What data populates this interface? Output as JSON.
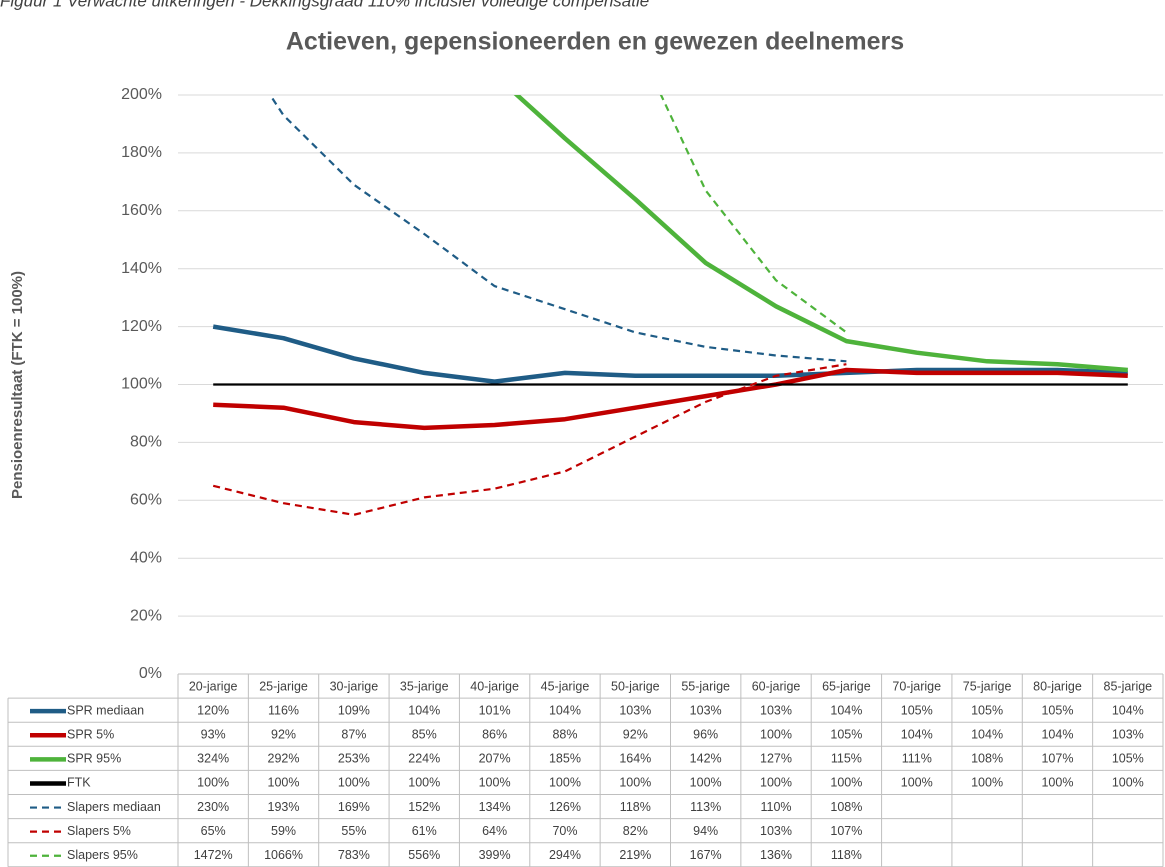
{
  "chart_data": {
    "type": "line",
    "note": "Figuur 1 Verwachte uitkeringen - Dekkingsgraad 110% inclusief volledige compensatie",
    "title": "Actieven, gepensioneerden en gewezen deelnemers",
    "y_label": "Pensioenresultaat (FTK = 100%)",
    "categories": [
      "20-jarige",
      "25-jarige",
      "30-jarige",
      "35-jarige",
      "40-jarige",
      "45-jarige",
      "50-jarige",
      "55-jarige",
      "60-jarige",
      "65-jarige",
      "70-jarige",
      "75-jarige",
      "80-jarige",
      "85-jarige"
    ],
    "ylim": [
      0,
      200
    ],
    "yticks": [
      {
        "value": 0,
        "label": "0%"
      },
      {
        "value": 20,
        "label": "20%"
      },
      {
        "value": 40,
        "label": "40%"
      },
      {
        "value": 60,
        "label": "60%"
      },
      {
        "value": 80,
        "label": "80%"
      },
      {
        "value": 100,
        "label": "100%"
      },
      {
        "value": 120,
        "label": "120%"
      },
      {
        "value": 140,
        "label": "140%"
      },
      {
        "value": 160,
        "label": "160%"
      },
      {
        "value": 180,
        "label": "180%"
      },
      {
        "value": 200,
        "label": "200%"
      }
    ],
    "grid": true,
    "series": [
      {
        "name": "SPR mediaan",
        "color": "#1f5c86",
        "dashed": false,
        "values": [
          120,
          116,
          109,
          104,
          101,
          104,
          103,
          103,
          103,
          104,
          105,
          105,
          105,
          104
        ],
        "value_labels": [
          "120%",
          "116%",
          "109%",
          "104%",
          "101%",
          "104%",
          "103%",
          "103%",
          "103%",
          "104%",
          "105%",
          "105%",
          "105%",
          "104%"
        ]
      },
      {
        "name": "SPR 5%",
        "color": "#c00000",
        "dashed": false,
        "values": [
          93,
          92,
          87,
          85,
          86,
          88,
          92,
          96,
          100,
          105,
          104,
          104,
          104,
          103
        ],
        "value_labels": [
          "93%",
          "92%",
          "87%",
          "85%",
          "86%",
          "88%",
          "92%",
          "96%",
          "100%",
          "105%",
          "104%",
          "104%",
          "104%",
          "103%"
        ]
      },
      {
        "name": "SPR 95%",
        "color": "#4eb33b",
        "dashed": false,
        "values": [
          324,
          292,
          253,
          224,
          207,
          185,
          164,
          142,
          127,
          115,
          111,
          108,
          107,
          105
        ],
        "value_labels": [
          "324%",
          "292%",
          "253%",
          "224%",
          "207%",
          "185%",
          "164%",
          "142%",
          "127%",
          "115%",
          "111%",
          "108%",
          "107%",
          "105%"
        ]
      },
      {
        "name": "FTK",
        "color": "#000000",
        "dashed": false,
        "values": [
          100,
          100,
          100,
          100,
          100,
          100,
          100,
          100,
          100,
          100,
          100,
          100,
          100,
          100
        ],
        "value_labels": [
          "100%",
          "100%",
          "100%",
          "100%",
          "100%",
          "100%",
          "100%",
          "100%",
          "100%",
          "100%",
          "100%",
          "100%",
          "100%",
          "100%"
        ]
      },
      {
        "name": "Slapers mediaan",
        "color": "#1f5c86",
        "dashed": true,
        "values": [
          230,
          193,
          169,
          152,
          134,
          126,
          118,
          113,
          110,
          108,
          null,
          null,
          null,
          null
        ],
        "value_labels": [
          "230%",
          "193%",
          "169%",
          "152%",
          "134%",
          "126%",
          "118%",
          "113%",
          "110%",
          "108%",
          null,
          null,
          null,
          null
        ]
      },
      {
        "name": "Slapers 5%",
        "color": "#c00000",
        "dashed": true,
        "values": [
          65,
          59,
          55,
          61,
          64,
          70,
          82,
          94,
          103,
          107,
          null,
          null,
          null,
          null
        ],
        "value_labels": [
          "65%",
          "59%",
          "55%",
          "61%",
          "64%",
          "70%",
          "82%",
          "94%",
          "103%",
          "107%",
          null,
          null,
          null,
          null
        ]
      },
      {
        "name": "Slapers 95%",
        "color": "#4eb33b",
        "dashed": true,
        "values": [
          1472,
          1066,
          783,
          556,
          399,
          294,
          219,
          167,
          136,
          118,
          null,
          null,
          null,
          null
        ],
        "value_labels": [
          "1472%",
          "1066%",
          "783%",
          "556%",
          "399%",
          "294%",
          "219%",
          "167%",
          "136%",
          "118%",
          null,
          null,
          null,
          null
        ]
      }
    ]
  }
}
